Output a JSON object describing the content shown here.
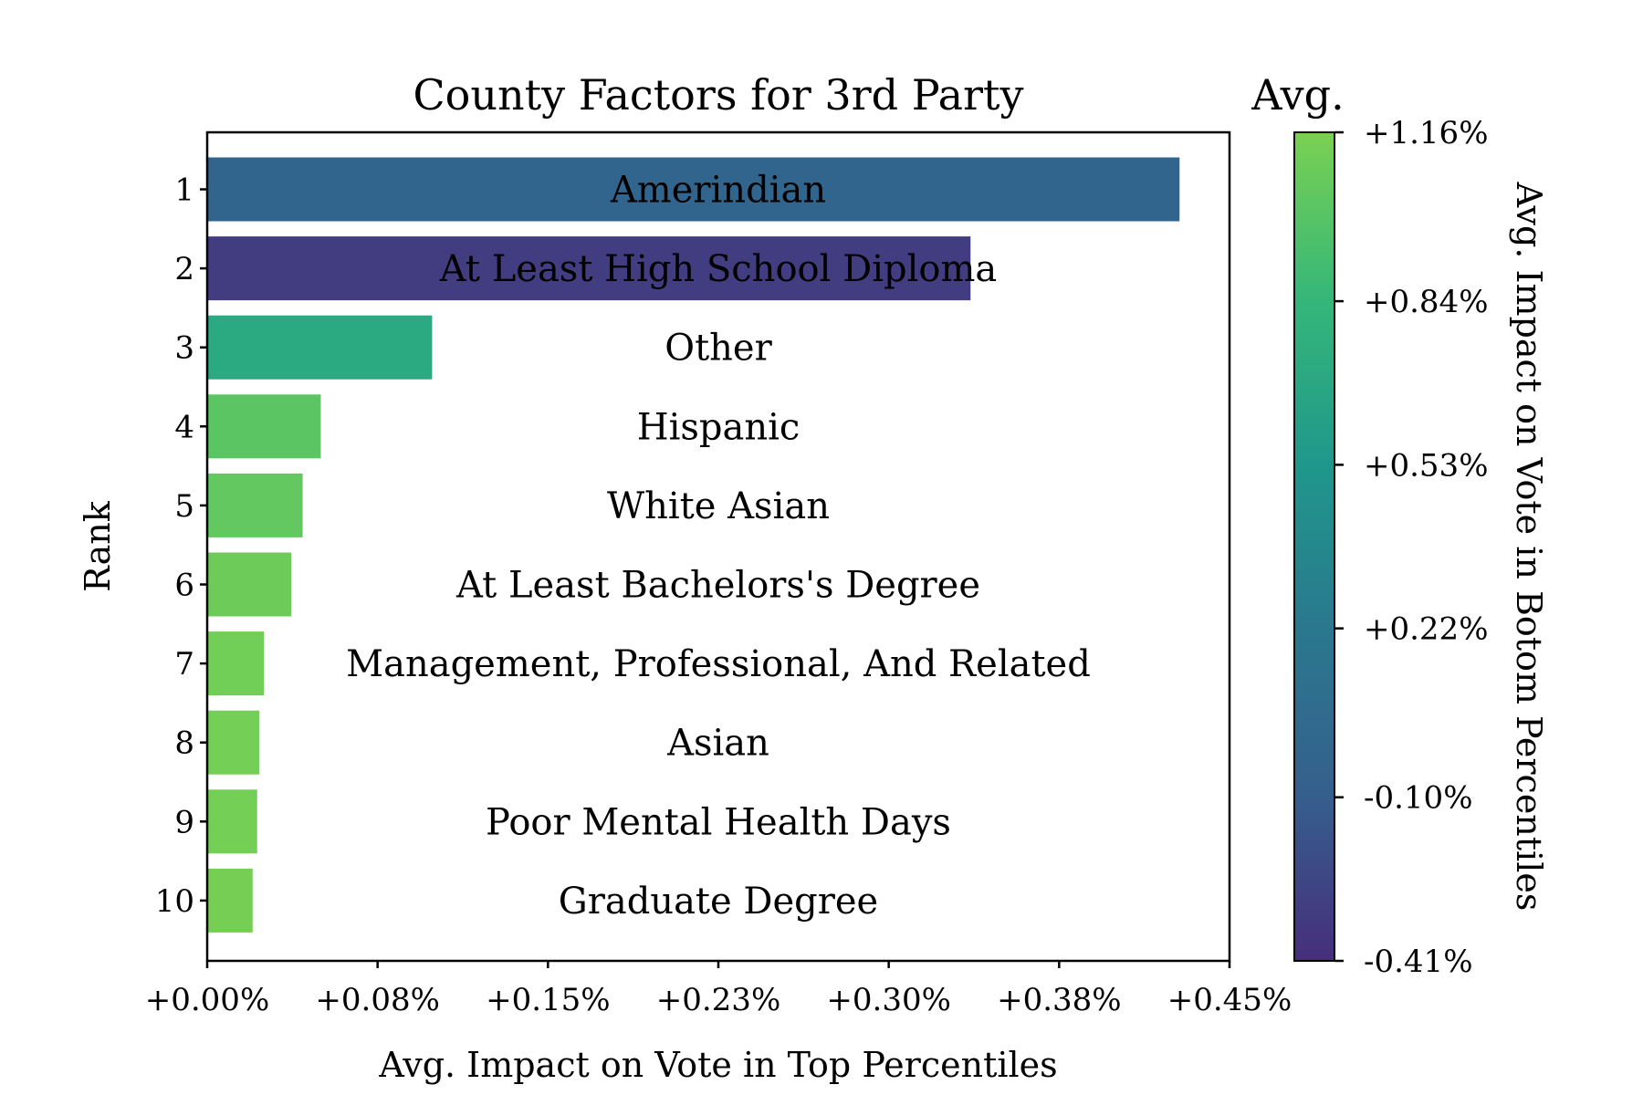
{
  "chart_data": {
    "type": "bar",
    "orientation": "horizontal",
    "title": "County Factors for 3rd Party",
    "xlabel": "Avg. Impact on Vote in Top Percentiles",
    "ylabel": "Rank",
    "xlim": [
      0,
      0.45
    ],
    "x_tick_labels": [
      "+0.00%",
      "+0.08%",
      "+0.15%",
      "+0.23%",
      "+0.30%",
      "+0.38%",
      "+0.45%"
    ],
    "categories": [
      "1",
      "2",
      "3",
      "4",
      "5",
      "6",
      "7",
      "8",
      "9",
      "10"
    ],
    "labels": [
      "Amerindian",
      "At Least High School Diploma",
      "Other",
      "Hispanic",
      "White Asian",
      "At Least Bachelors's Degree",
      "Management, Professional, And Related",
      "Asian",
      "Poor Mental Health Days",
      "Graduate Degree"
    ],
    "values": [
      0.428,
      0.336,
      0.099,
      0.05,
      0.042,
      0.037,
      0.025,
      0.023,
      0.022,
      0.02
    ],
    "color_values": [
      -0.02,
      -0.32,
      0.7,
      1.02,
      1.05,
      1.1,
      1.12,
      1.13,
      1.13,
      1.14
    ],
    "colorbar": {
      "title": "Avg.",
      "label": "Avg. Impact on Vote in Botom Percentiles",
      "range": [
        -0.41,
        1.16
      ],
      "tick_values": [
        1.16,
        0.84,
        0.53,
        0.22,
        -0.1,
        -0.41
      ],
      "tick_labels": [
        "+1.16%",
        "+0.84%",
        "+0.53%",
        "+0.22%",
        "-0.10%",
        "-0.41%"
      ],
      "colormap": "viridis"
    },
    "grid": false
  }
}
